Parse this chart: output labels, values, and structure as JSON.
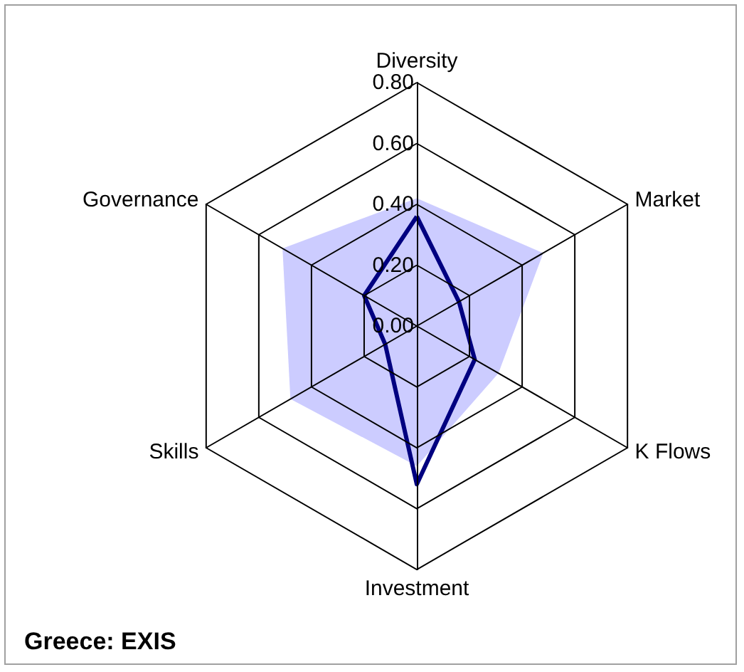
{
  "chart_data": {
    "type": "radar",
    "title": "Greece: EXIS",
    "categories": [
      "Diversity",
      "Market",
      "K Flows",
      "Investment",
      "Skills",
      "Governance"
    ],
    "series": [
      {
        "color": "#ccccff",
        "values": [
          0.42,
          0.48,
          0.31,
          0.46,
          0.48,
          0.51
        ]
      },
      {
        "color": "#000080",
        "values": [
          0.36,
          0.16,
          0.22,
          0.52,
          0.12,
          0.2
        ]
      }
    ],
    "ylim": [
      0,
      0.8
    ],
    "yticks": [
      {
        "value": 0,
        "label": "0.00"
      },
      {
        "value": 0.2,
        "label": "0.20"
      },
      {
        "value": 0.4,
        "label": "0.40"
      },
      {
        "value": 0.6,
        "label": "0.60"
      },
      {
        "value": 0.8,
        "label": "0.80"
      }
    ],
    "grid": true,
    "marker": "none"
  }
}
